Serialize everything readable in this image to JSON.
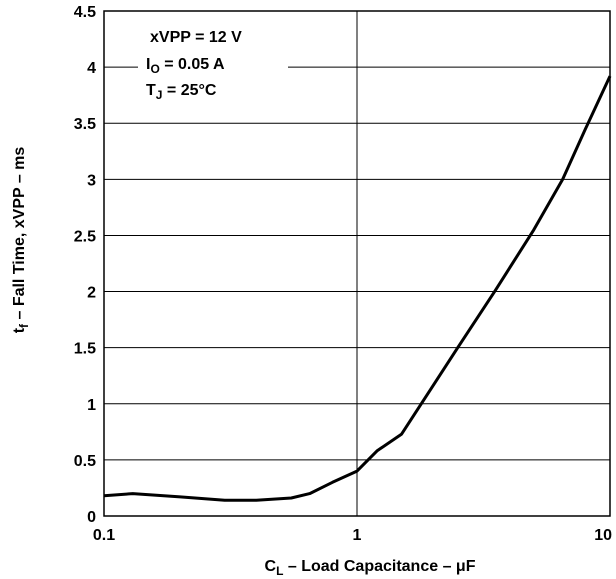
{
  "chart_data": {
    "type": "line",
    "x_scale": "log",
    "xlim": [
      0.1,
      10
    ],
    "ylim": [
      0,
      4.5
    ],
    "x_ticks": [
      "0.1",
      "1",
      "10"
    ],
    "y_ticks": [
      "0",
      "0.5",
      "1",
      "1.5",
      "2",
      "2.5",
      "3",
      "3.5",
      "4",
      "4.5"
    ],
    "xlabel": {
      "main": "C",
      "sub": "L",
      "rest": " – Load Capacitance – μF"
    },
    "ylabel": {
      "main": "t",
      "sub": "f",
      "rest": "  – Fall Time, xVPP – ms"
    },
    "annotations": [
      {
        "main": "xVPP = 12 V",
        "sub": "",
        "rest": ""
      },
      {
        "main": "I",
        "sub": "O",
        "rest": " = 0.05 A"
      },
      {
        "main": "T",
        "sub": "J",
        "rest": " = 25°C"
      }
    ],
    "grid": true,
    "series": [
      {
        "x": [
          0.1,
          0.13,
          0.2,
          0.3,
          0.4,
          0.55,
          0.65,
          0.8,
          1.0,
          1.2,
          1.5,
          2.5,
          3.5,
          5.0,
          6.5,
          8.0,
          10.0
        ],
        "y": [
          0.18,
          0.2,
          0.17,
          0.14,
          0.14,
          0.16,
          0.2,
          0.3,
          0.4,
          0.58,
          0.73,
          1.5,
          2.0,
          2.55,
          3.0,
          3.45,
          3.92
        ]
      }
    ]
  }
}
